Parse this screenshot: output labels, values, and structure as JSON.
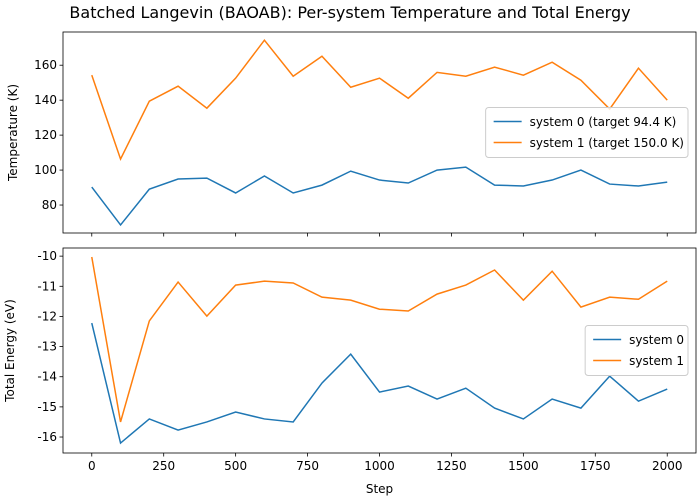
{
  "chart_data": [
    {
      "type": "line",
      "title": "Batched Langevin (BAOAB): Per-system Temperature and Total Energy",
      "ylabel": "Temperature (K)",
      "x": [
        0,
        100,
        200,
        300,
        400,
        500,
        600,
        700,
        800,
        900,
        1000,
        1100,
        1200,
        1300,
        1400,
        1500,
        1600,
        1700,
        1800,
        1900,
        2000
      ],
      "series": [
        {
          "name": "system 0 (target 94.4 K)",
          "color": "#1f77b4",
          "values": [
            90.3,
            68.6,
            89.1,
            94.9,
            95.4,
            86.9,
            96.6,
            86.9,
            91.4,
            99.4,
            94.3,
            92.6,
            100.0,
            101.7,
            91.4,
            90.9,
            94.3,
            100.0,
            92.0,
            90.9,
            93.1
          ]
        },
        {
          "name": "system 1 (target 150.0 K)",
          "color": "#ff7f0e",
          "values": [
            154.3,
            106.3,
            139.4,
            148.0,
            135.4,
            152.6,
            174.3,
            153.7,
            165.1,
            147.4,
            152.6,
            141.1,
            155.9,
            153.7,
            158.9,
            154.3,
            161.7,
            151.4,
            134.9,
            158.3,
            140.0
          ]
        }
      ],
      "xlim": [
        -100,
        2100
      ],
      "xticks": [
        0,
        250,
        500,
        750,
        1000,
        1250,
        1500,
        1750,
        2000
      ],
      "ylim": [
        64,
        179
      ],
      "yticks": [
        80,
        100,
        120,
        140,
        160
      ],
      "legend": "center right"
    },
    {
      "type": "line",
      "xlabel": "Step",
      "ylabel": "Total Energy (eV)",
      "x": [
        0,
        100,
        200,
        300,
        400,
        500,
        600,
        700,
        800,
        900,
        1000,
        1100,
        1200,
        1300,
        1400,
        1500,
        1600,
        1700,
        1800,
        1900,
        2000
      ],
      "series": [
        {
          "name": "system 0",
          "color": "#1f77b4",
          "values": [
            -12.22,
            -16.2,
            -15.4,
            -15.77,
            -15.5,
            -15.17,
            -15.4,
            -15.5,
            -14.21,
            -13.25,
            -14.51,
            -14.31,
            -14.74,
            -14.38,
            -15.04,
            -15.4,
            -14.74,
            -15.04,
            -13.98,
            -14.81,
            -14.41
          ]
        },
        {
          "name": "system 1",
          "color": "#ff7f0e",
          "values": [
            -10.03,
            -15.5,
            -12.15,
            -10.86,
            -11.99,
            -10.96,
            -10.83,
            -10.89,
            -11.36,
            -11.46,
            -11.76,
            -11.82,
            -11.26,
            -10.96,
            -10.46,
            -11.46,
            -10.5,
            -11.69,
            -11.36,
            -11.43,
            -10.83
          ]
        }
      ],
      "xlim": [
        -100,
        2100
      ],
      "xticks": [
        0,
        250,
        500,
        750,
        1000,
        1250,
        1500,
        1750,
        2000
      ],
      "ylim": [
        -16.53,
        -9.73
      ],
      "yticks": [
        -16,
        -15,
        -14,
        -13,
        -12,
        -11,
        -10
      ],
      "legend": "center right"
    }
  ]
}
